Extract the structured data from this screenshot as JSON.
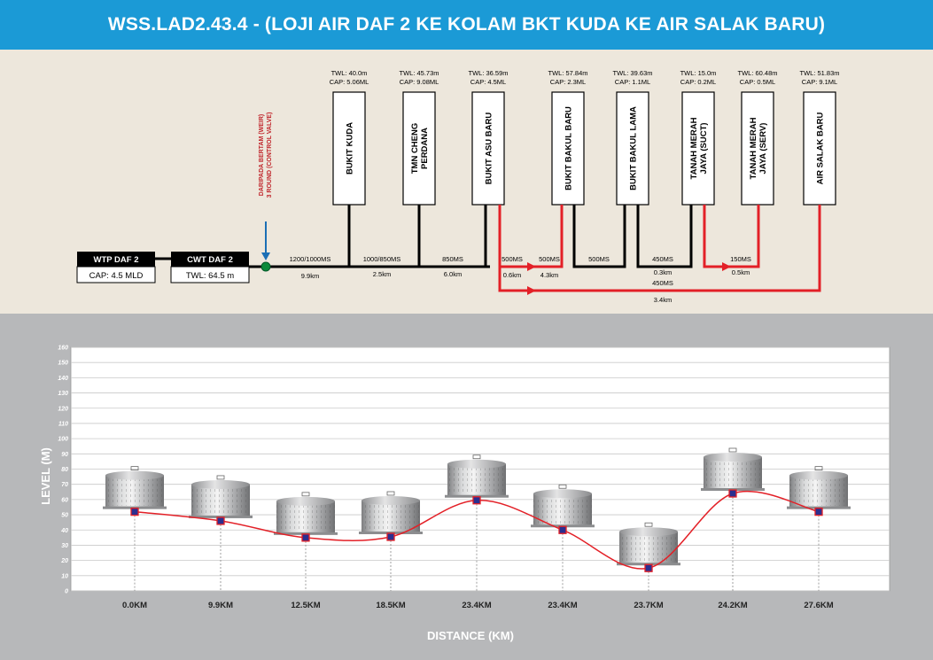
{
  "title": "WSS.LAD2.43.4 - (LOJI AIR DAF 2 KE KOLAM BKT KUDA KE AIR SALAK BARU)",
  "colors": {
    "header": "#1b9ad6",
    "schematic_bg": "#ede7dc",
    "chart_bg": "#b7b8ba",
    "main_pipe": "#000000",
    "branch_pipe": "#e32027",
    "inlet_arrow": "#1b6fb5",
    "valve": "#0a8a3a",
    "marker_fill": "#2b2f8f",
    "inlet_text": "#c0272d"
  },
  "sources": [
    {
      "name": "WTP DAF 2",
      "value": "CAP: 4.5 MLD"
    },
    {
      "name": "CWT DAF 2",
      "value": "TWL: 64.5 m"
    }
  ],
  "inlet": {
    "line1": "DARIPADA BERTAM (WEIR)",
    "line2": "3 ROUND (CONTROL VALVE)"
  },
  "reservoirs": [
    {
      "name_lines": [
        "BUKIT KUDA"
      ],
      "twl": "TWL: 40.0m",
      "cap": "CAP: 5.06ML"
    },
    {
      "name_lines": [
        "TMN CHENG",
        "PERDANA"
      ],
      "twl": "TWL: 45.73m",
      "cap": "CAP: 9.08ML"
    },
    {
      "name_lines": [
        "BUKIT ASU BARU"
      ],
      "twl": "TWL: 36.59m",
      "cap": "CAP: 4.5ML"
    },
    {
      "name_lines": [
        "BUKIT BAKUL BARU"
      ],
      "twl": "TWL: 57.84m",
      "cap": "CAP: 2.3ML"
    },
    {
      "name_lines": [
        "BUKIT BAKUL LAMA"
      ],
      "twl": "TWL: 39.63m",
      "cap": "CAP: 1.1ML"
    },
    {
      "name_lines": [
        "TANAH MERAH",
        "JAYA (SUCT)"
      ],
      "twl": "TWL: 15.0m",
      "cap": "CAP: 0.2ML"
    },
    {
      "name_lines": [
        "TANAH MERAH",
        "JAYA (SERV)"
      ],
      "twl": "TWL: 60.48m",
      "cap": "CAP: 0.5ML"
    },
    {
      "name_lines": [
        "AIR SALAK BARU"
      ],
      "twl": "TWL: 51.83m",
      "cap": "CAP: 9.1ML"
    }
  ],
  "pipes": [
    {
      "size": "1200/1000MS",
      "length": "9.9km"
    },
    {
      "size": "1000/850MS",
      "length": "2.5km"
    },
    {
      "size": "850MS",
      "length": "6.0km"
    },
    {
      "size": "500MS",
      "length": "0.6km"
    },
    {
      "size": "500MS",
      "length": "4.3km"
    },
    {
      "size": "500MS",
      "length": ""
    },
    {
      "size": "450MS",
      "length": "0.3km"
    },
    {
      "size": "150MS",
      "length": "0.5km"
    },
    {
      "size": "450MS",
      "length": "3.4km"
    }
  ],
  "chart_data": {
    "type": "line",
    "xlabel": "DISTANCE (KM)",
    "ylabel": "LEVEL (M)",
    "ylim": [
      0,
      160
    ],
    "yticks": [
      0,
      10,
      20,
      30,
      40,
      50,
      60,
      70,
      80,
      90,
      100,
      110,
      120,
      130,
      140,
      150,
      160
    ],
    "grid": true,
    "categories": [
      "0.0KM",
      "9.9KM",
      "12.5KM",
      "18.5KM",
      "23.4KM",
      "23.4KM",
      "23.7KM",
      "24.2KM",
      "27.6KM"
    ],
    "values": [
      52,
      46,
      35,
      35.5,
      59.5,
      40,
      15,
      64,
      52
    ],
    "tank_icons": true
  }
}
